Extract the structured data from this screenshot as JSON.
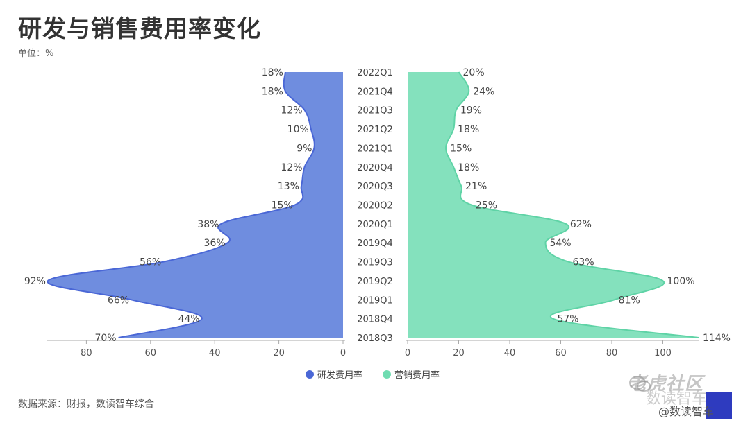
{
  "header": {
    "title": "研发与销售费用率变化",
    "unit": "单位：%"
  },
  "footer": {
    "source": "数据来源：财报，数读智车综合"
  },
  "watermark": {
    "main": "老虎社区",
    "sub": "数读智车",
    "handle": "@数读智车"
  },
  "colors": {
    "rd": "#5b7ddb",
    "rd_line": "#4a67d6",
    "sales": "#6fdcb1",
    "sales_line": "#5fd3a6"
  },
  "chart_data": {
    "type": "area",
    "categories": [
      "2022Q1",
      "2021Q4",
      "2021Q3",
      "2021Q2",
      "2021Q1",
      "2020Q4",
      "2020Q3",
      "2020Q2",
      "2020Q1",
      "2019Q4",
      "2019Q3",
      "2019Q2",
      "2019Q1",
      "2018Q4",
      "2018Q3"
    ],
    "series": [
      {
        "name": "研发费用率",
        "values": [
          18,
          18,
          12,
          10,
          9,
          12,
          13,
          15,
          38,
          36,
          56,
          92,
          66,
          44,
          70
        ],
        "labels": [
          "18%",
          "18%",
          "12%",
          "10%",
          "9%",
          "12%",
          "13%",
          "15%",
          "38%",
          "36%",
          "56%",
          "92%",
          "66%",
          "44%",
          "70%"
        ],
        "axis_ticks": [
          "80",
          "60",
          "40",
          "20",
          "0"
        ],
        "xlim": [
          0,
          92
        ]
      },
      {
        "name": "营销费用率",
        "values": [
          20,
          24,
          19,
          18,
          15,
          18,
          21,
          25,
          62,
          54,
          63,
          100,
          81,
          57,
          114
        ],
        "labels": [
          "20%",
          "24%",
          "19%",
          "18%",
          "15%",
          "18%",
          "21%",
          "25%",
          "62%",
          "54%",
          "63%",
          "100%",
          "81%",
          "57%",
          "114%"
        ],
        "axis_ticks": [
          "0",
          "20",
          "40",
          "60",
          "80",
          "100"
        ],
        "xlim": [
          0,
          114
        ]
      }
    ],
    "legend_position": "bottom"
  }
}
